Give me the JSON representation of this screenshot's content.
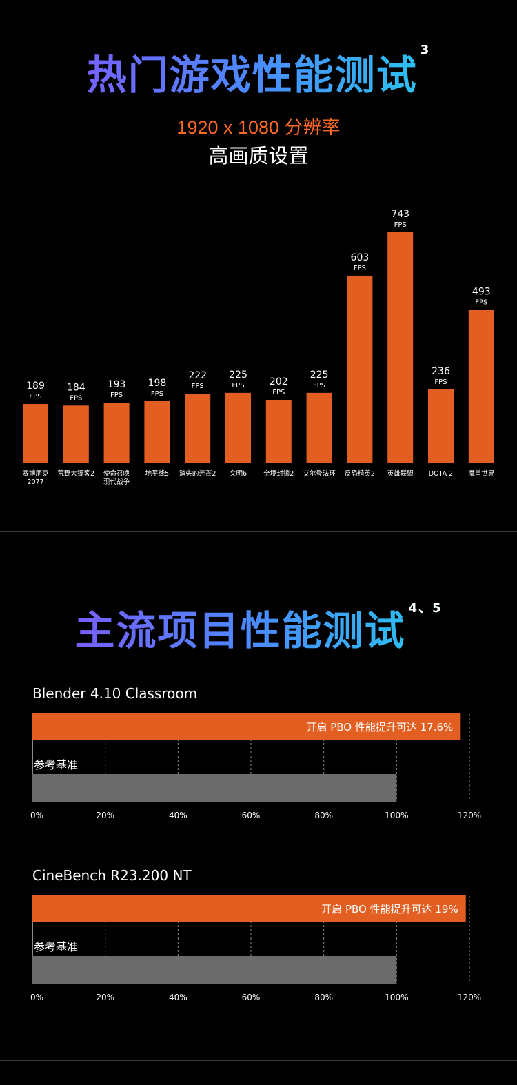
{
  "section1": {
    "title": "热门游戏性能测试",
    "title_sup": "3",
    "resolution": "1920 x 1080 分辨率",
    "quality": "高画质设置"
  },
  "section2": {
    "title": "主流项目性能测试",
    "title_sup": "4、5"
  },
  "colors": {
    "bar": "#e35f21",
    "baseline": "#6b6b6b",
    "background": "#000000"
  },
  "chart_data": [
    {
      "type": "bar",
      "unit_label": "FPS",
      "categories": [
        "赛博朋克\n2077",
        "荒野大镖客2",
        "使命召唤\n现代战争",
        "地平线5",
        "消失的光芒2",
        "文明6",
        "全境封锁2",
        "艾尔登法环",
        "反恐精英2",
        "英雄联盟",
        "DOTA 2",
        "魔兽世界"
      ],
      "values": [
        189,
        184,
        193,
        198,
        222,
        225,
        202,
        225,
        603,
        743,
        236,
        493
      ],
      "title": "",
      "xlabel": "",
      "ylabel": "",
      "ylim": [
        0,
        743
      ],
      "grid": false,
      "legend": "none"
    },
    {
      "type": "bar",
      "orientation": "horizontal",
      "title": "Blender 4.10  Classroom",
      "categories": [
        "开启 PBO 性能提升可达 17.6%",
        "参考基准"
      ],
      "values": [
        117.6,
        100
      ],
      "xlim": [
        0,
        120
      ],
      "xticks": [
        "0%",
        "20%",
        "40%",
        "60%",
        "80%",
        "100%",
        "120%"
      ],
      "grid": true
    },
    {
      "type": "bar",
      "orientation": "horizontal",
      "title": "CineBench R23.200  NT",
      "categories": [
        "开启 PBO 性能提升可达 19%",
        "参考基准"
      ],
      "values": [
        119,
        100
      ],
      "xlim": [
        0,
        120
      ],
      "xticks": [
        "0%",
        "20%",
        "40%",
        "60%",
        "80%",
        "100%",
        "120%"
      ],
      "grid": true
    }
  ]
}
